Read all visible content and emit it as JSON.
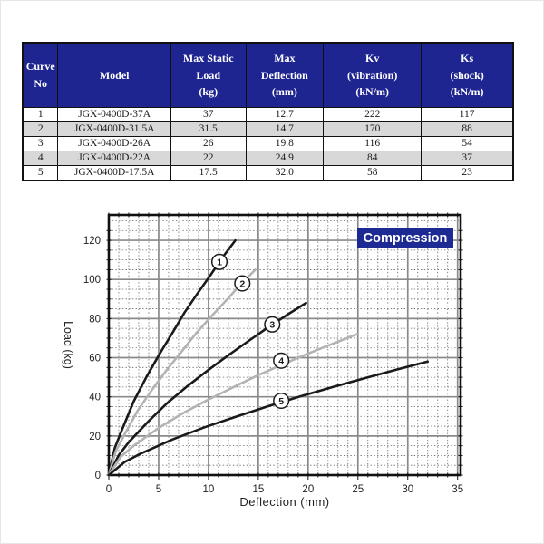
{
  "page": {
    "background": "#ffffff"
  },
  "table": {
    "header_bg": "#1e2490",
    "header_text_color": "#ffffff",
    "alt_row_bg": "#d8d8d8",
    "headers": [
      "Curve\nNo",
      "Model",
      "Max Static\nLoad\n(kg)",
      "Max\nDeflection\n(mm)",
      "Kv\n(vibration)\n(kN/m)",
      "Ks\n(shock)\n(kN/m)"
    ],
    "rows": [
      [
        "1",
        "JGX-0400D-37A",
        "37",
        "12.7",
        "222",
        "117"
      ],
      [
        "2",
        "JGX-0400D-31.5A",
        "31.5",
        "14.7",
        "170",
        "88"
      ],
      [
        "3",
        "JGX-0400D-26A",
        "26",
        "19.8",
        "116",
        "54"
      ],
      [
        "4",
        "JGX-0400D-22A",
        "22",
        "24.9",
        "84",
        "37"
      ],
      [
        "5",
        "JGX-0400D-17.5A",
        "17.5",
        "32.0",
        "58",
        "23"
      ]
    ]
  },
  "chart_data": {
    "type": "line",
    "title": "Compression",
    "xlabel": "Deflection (mm)",
    "ylabel": "Load (kg)",
    "xlim": [
      0,
      35.3
    ],
    "ylim": [
      0,
      133
    ],
    "grid": true,
    "x_major_ticks": [
      0,
      5,
      10,
      15,
      20,
      25,
      30,
      35
    ],
    "y_major_ticks": [
      0,
      20,
      40,
      60,
      80,
      100,
      120
    ],
    "x_major_step": 5,
    "y_major_step": 20,
    "x_minor_step": 1,
    "y_minor_step": 5,
    "legend_position": "top-right-badge",
    "colors": {
      "badge_bg": "#1e2a94",
      "badge_text": "#ffffff",
      "grid_major": "#8a8a8a",
      "grid_minor": "#666666",
      "border": "#111111",
      "curve_dark": "#1a1a1a",
      "curve_gray": "#b3b3b3"
    },
    "series": [
      {
        "name": "1",
        "color": "#1a1a1a",
        "max_deflection_mm": 12.7,
        "end_load_kg": 120,
        "label_at": [
          11.1,
          109
        ],
        "points": [
          [
            0,
            0
          ],
          [
            0.6,
            13.9
          ],
          [
            1.3,
            22.9
          ],
          [
            2.5,
            37.7
          ],
          [
            3.8,
            50.4
          ],
          [
            5.1,
            62
          ],
          [
            6.4,
            72.8
          ],
          [
            7.6,
            83.1
          ],
          [
            8.9,
            92.8
          ],
          [
            10.2,
            102.2
          ],
          [
            11.4,
            111.2
          ],
          [
            12.7,
            120
          ]
        ]
      },
      {
        "name": "2",
        "color": "#b3b3b3",
        "max_deflection_mm": 14.7,
        "end_load_kg": 105,
        "label_at": [
          13.4,
          98
        ],
        "points": [
          [
            0,
            0
          ],
          [
            0.7,
            12.2
          ],
          [
            1.5,
            20
          ],
          [
            2.9,
            33
          ],
          [
            4.4,
            44.1
          ],
          [
            5.9,
            54.3
          ],
          [
            7.4,
            63.7
          ],
          [
            8.8,
            72.7
          ],
          [
            10.3,
            81.2
          ],
          [
            11.8,
            89.4
          ],
          [
            13.2,
            97.3
          ],
          [
            14.7,
            105
          ]
        ]
      },
      {
        "name": "3",
        "color": "#1a1a1a",
        "max_deflection_mm": 19.8,
        "end_load_kg": 88,
        "label_at": [
          16.4,
          77
        ],
        "points": [
          [
            0,
            0
          ],
          [
            1,
            10.2
          ],
          [
            2,
            16.8
          ],
          [
            4,
            27.6
          ],
          [
            5.9,
            37
          ],
          [
            7.9,
            45.5
          ],
          [
            9.9,
            53.4
          ],
          [
            11.9,
            60.9
          ],
          [
            13.9,
            68.1
          ],
          [
            15.8,
            74.9
          ],
          [
            17.8,
            81.6
          ],
          [
            19.8,
            88
          ]
        ]
      },
      {
        "name": "4",
        "color": "#b3b3b3",
        "max_deflection_mm": 24.9,
        "end_load_kg": 72,
        "label_at": [
          17.3,
          58.5
        ],
        "points": [
          [
            0,
            0
          ],
          [
            1.2,
            9.4
          ],
          [
            2.5,
            15
          ],
          [
            5,
            24.1
          ],
          [
            7.5,
            31.8
          ],
          [
            10,
            38.6
          ],
          [
            12.5,
            44.9
          ],
          [
            14.9,
            50.9
          ],
          [
            17.4,
            56.5
          ],
          [
            19.9,
            61.9
          ],
          [
            22.4,
            67
          ],
          [
            24.9,
            72
          ]
        ]
      },
      {
        "name": "5",
        "color": "#1a1a1a",
        "max_deflection_mm": 32.0,
        "end_load_kg": 58,
        "label_at": [
          17.3,
          38
        ],
        "points": [
          [
            0,
            0
          ],
          [
            1.6,
            6.7
          ],
          [
            3.2,
            11
          ],
          [
            6.4,
            18.2
          ],
          [
            9.6,
            24.4
          ],
          [
            12.8,
            29.9
          ],
          [
            16,
            35.2
          ],
          [
            19.2,
            40.2
          ],
          [
            22.4,
            44.9
          ],
          [
            25.6,
            49.4
          ],
          [
            28.8,
            53.8
          ],
          [
            32,
            58
          ]
        ]
      }
    ]
  }
}
